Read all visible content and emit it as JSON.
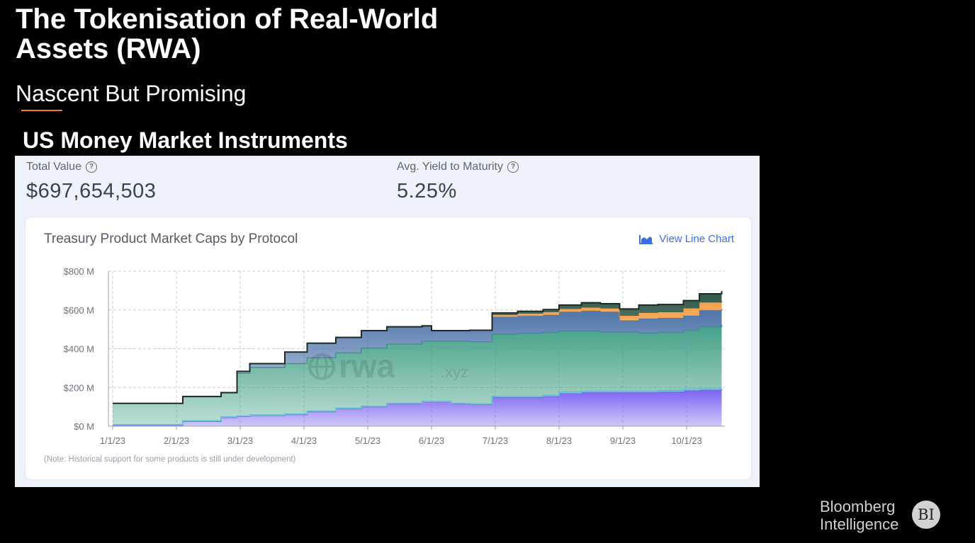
{
  "slide": {
    "title": "The Tokenisation of Real-World Assets (RWA)",
    "subtitle": "Nascent But Promising",
    "section_heading": "US Money Market Instruments"
  },
  "stats": {
    "total_value_label": "Total Value",
    "total_value": "$697,654,503",
    "yield_label": "Avg. Yield to Maturity",
    "yield_value": "5.25%"
  },
  "card": {
    "title": "Treasury Product Market Caps by Protocol",
    "view_line_label": "View Line Chart",
    "note": "(Note: Historical support for some products is still under development)",
    "watermark": "rwa",
    "watermark_suffix": ".xyz"
  },
  "branding": {
    "line1": "Bloomberg",
    "line2": "Intelligence",
    "badge": "BI"
  },
  "colors": {
    "accent_rule": "#f47c20",
    "link": "#3a6ee0"
  },
  "chart_data": {
    "type": "area",
    "stacked": true,
    "x_ticks": [
      "1/1/23",
      "2/1/23",
      "3/1/23",
      "4/1/23",
      "5/1/23",
      "6/1/23",
      "7/1/23",
      "8/1/23",
      "9/1/23",
      "10/1/23"
    ],
    "y_ticks": [
      "$0 M",
      "$200 M",
      "$400 M",
      "$600 M",
      "$800 M"
    ],
    "ylim": [
      0,
      800
    ],
    "x_months": [
      0,
      0.5,
      0.95,
      1.1,
      1.7,
      1.95,
      2.15,
      2.7,
      3.05,
      3.5,
      3.9,
      4.3,
      4.85,
      5.0,
      5.3,
      5.6,
      5.95,
      6.35,
      6.75,
      7.0,
      7.35,
      7.65,
      7.95,
      8.25,
      8.55,
      8.95,
      9.2,
      9.55
    ],
    "series": [
      {
        "color": "#7b62f0",
        "values": [
          5,
          5,
          5,
          25,
          45,
          50,
          55,
          60,
          75,
          90,
          100,
          115,
          125,
          125,
          115,
          112,
          150,
          150,
          155,
          170,
          175,
          175,
          175,
          175,
          178,
          185,
          188,
          190
        ]
      },
      {
        "color": "#6ed0ea",
        "values": [
          3,
          3,
          3,
          3,
          3,
          3,
          3,
          3,
          3,
          3,
          3,
          3,
          3,
          3,
          3,
          3,
          4,
          4,
          4,
          5,
          5,
          5,
          5,
          5,
          5,
          5,
          5,
          5
        ]
      },
      {
        "color": "#43a088",
        "values": [
          110,
          110,
          110,
          125,
          125,
          220,
          245,
          260,
          275,
          285,
          300,
          305,
          310,
          310,
          320,
          320,
          320,
          325,
          325,
          315,
          310,
          305,
          305,
          300,
          300,
          305,
          320,
          330
        ]
      },
      {
        "color": "#4d73a8",
        "values": [
          0,
          0,
          0,
          0,
          0,
          10,
          20,
          60,
          75,
          80,
          90,
          90,
          80,
          55,
          55,
          60,
          90,
          90,
          90,
          100,
          105,
          105,
          60,
          75,
          75,
          75,
          85,
          80
        ]
      },
      {
        "color": "#f3a04a",
        "values": [
          0,
          0,
          0,
          0,
          0,
          0,
          0,
          0,
          0,
          0,
          0,
          0,
          0,
          0,
          0,
          0,
          10,
          12,
          14,
          15,
          17,
          17,
          25,
          30,
          30,
          38,
          40,
          42
        ]
      },
      {
        "color": "#2d5546",
        "values": [
          0,
          0,
          0,
          0,
          0,
          0,
          0,
          0,
          0,
          0,
          0,
          0,
          0,
          0,
          0,
          0,
          10,
          12,
          14,
          20,
          25,
          25,
          35,
          40,
          40,
          40,
          45,
          50
        ]
      }
    ]
  }
}
